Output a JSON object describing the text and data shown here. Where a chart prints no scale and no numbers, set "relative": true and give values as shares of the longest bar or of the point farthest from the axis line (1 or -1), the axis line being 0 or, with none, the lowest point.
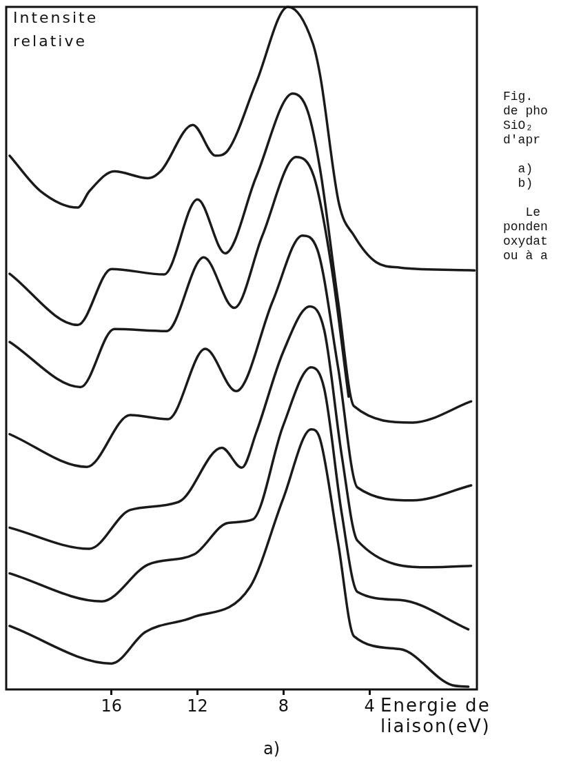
{
  "chart_data": {
    "type": "line",
    "relative": true,
    "ylabel": "Intensite relative",
    "xlabel": "Energie de liaison(eV)",
    "xlim": [
      20.9,
      -1.0
    ],
    "xticks": [
      16,
      12,
      8,
      4
    ],
    "grid": false,
    "annotations": [
      "a)",
      "Fig. \nde pho\nSiO₂ \nd'apr\n\n  a) \n  b) \n\n   Le\nponden\noxydat\nou à a"
    ],
    "series": [
      {
        "color": "#1a1a1a",
        "x": [
          20.74,
          19.3,
          17.57,
          17.03,
          15.87,
          14.3,
          13.72,
          12.22,
          11.16,
          10.58,
          9.27,
          7.79,
          6.64,
          6.29,
          5.42,
          4.72,
          3.69,
          2.57,
          -0.89
        ],
        "values": [
          0.782,
          0.73,
          0.706,
          0.73,
          0.759,
          0.749,
          0.759,
          0.827,
          0.782,
          0.79,
          0.889,
          1.0,
          0.947,
          0.899,
          0.712,
          0.665,
          0.626,
          0.618,
          0.614
        ]
      },
      {
        "color": "#1a1a1a",
        "x": [
          20.74,
          17.57,
          16.0,
          13.56,
          12.0,
          10.71,
          9.27,
          7.57,
          6.87,
          6.29,
          5.46,
          4.72,
          1.99,
          -0.73
        ],
        "values": [
          0.609,
          0.534,
          0.616,
          0.608,
          0.718,
          0.639,
          0.751,
          0.873,
          0.847,
          0.761,
          0.569,
          0.415,
          0.391,
          0.422
        ]
      },
      {
        "color": "#1a1a1a",
        "x": [
          20.74,
          17.44,
          15.87,
          13.44,
          11.71,
          10.29,
          8.98,
          7.41,
          6.58,
          5.78,
          4.97
        ],
        "values": [
          0.509,
          0.443,
          0.528,
          0.525,
          0.633,
          0.559,
          0.665,
          0.78,
          0.751,
          0.622,
          0.429
        ]
      },
      {
        "color": "#1a1a1a",
        "x": [
          20.74,
          17.15,
          15.13,
          13.37,
          11.64,
          10.2,
          8.5,
          7.12,
          6.42,
          5.46,
          4.56,
          1.99,
          -0.73
        ],
        "values": [
          0.374,
          0.326,
          0.402,
          0.396,
          0.499,
          0.437,
          0.569,
          0.665,
          0.644,
          0.472,
          0.296,
          0.277,
          0.299
        ]
      },
      {
        "color": "#1a1a1a",
        "x": [
          20.74,
          17.03,
          15.13,
          12.86,
          10.87,
          9.94,
          9.27,
          8.02,
          6.77,
          6.1,
          5.29,
          4.56,
          1.13,
          -0.73
        ],
        "values": [
          0.237,
          0.206,
          0.263,
          0.275,
          0.354,
          0.325,
          0.376,
          0.494,
          0.561,
          0.526,
          0.343,
          0.218,
          0.179,
          0.181
        ]
      },
      {
        "color": "#1a1a1a",
        "x": [
          20.74,
          16.45,
          14.3,
          12.15,
          10.58,
          9.43,
          8.02,
          6.71,
          6.1,
          5.29,
          4.56,
          2.57,
          -0.6
        ],
        "values": [
          0.17,
          0.129,
          0.183,
          0.198,
          0.244,
          0.249,
          0.386,
          0.472,
          0.44,
          0.258,
          0.143,
          0.131,
          0.088
        ]
      },
      {
        "color": "#1a1a1a",
        "x": [
          20.74,
          16.0,
          14.43,
          12.28,
          9.56,
          8.02,
          6.71,
          6.29,
          5.46,
          4.72,
          2.57,
          0.13,
          -0.6
        ],
        "values": [
          0.093,
          0.038,
          0.084,
          0.105,
          0.15,
          0.279,
          0.381,
          0.366,
          0.215,
          0.078,
          0.059,
          0.006,
          0.004
        ]
      }
    ]
  }
}
